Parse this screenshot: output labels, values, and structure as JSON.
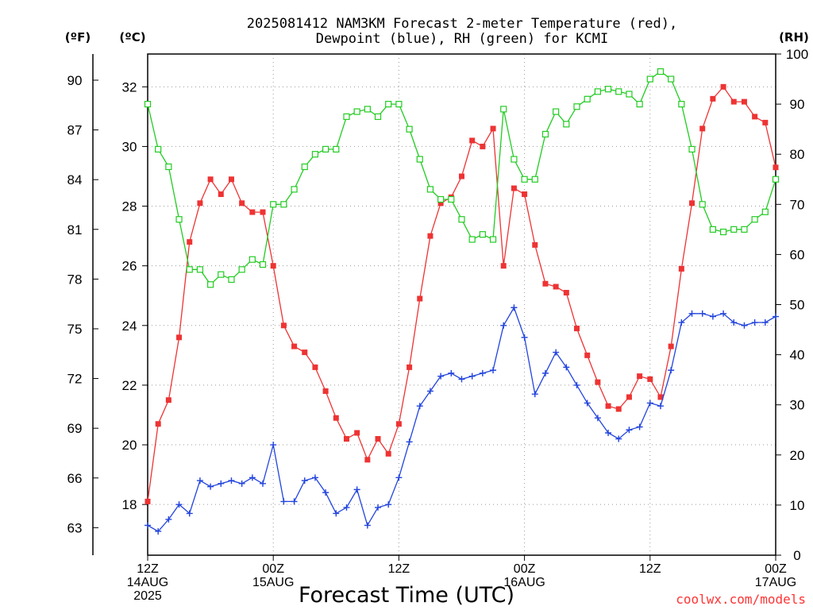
{
  "chart_data": {
    "type": "line",
    "title_line1": "2025081412 NAM3KM Forecast 2-meter Temperature (red),",
    "title_line2": "Dewpoint (blue), RH (green) for KCMI",
    "unit_f": "(ºF)",
    "unit_c": "(ºC)",
    "unit_rh": "(RH)",
    "xlabel": "Forecast Time (UTC)",
    "credit": "coolwx.com/models",
    "x_start_hour": 0,
    "x_end_hour": 60,
    "x_ticks": [
      {
        "hour": 0,
        "lines": [
          "12Z",
          "14AUG",
          "2025"
        ]
      },
      {
        "hour": 12,
        "lines": [
          "00Z",
          "15AUG"
        ]
      },
      {
        "hour": 24,
        "lines": [
          "12Z"
        ]
      },
      {
        "hour": 36,
        "lines": [
          "00Z",
          "16AUG"
        ]
      },
      {
        "hour": 48,
        "lines": [
          "12Z"
        ]
      },
      {
        "hour": 60,
        "lines": [
          "00Z",
          "17AUG"
        ]
      }
    ],
    "ylim_c": [
      16.3,
      33.1
    ],
    "yticks_c": [
      "18",
      "20",
      "22",
      "24",
      "26",
      "28",
      "30",
      "32"
    ],
    "yticks_f": [
      "63",
      "66",
      "69",
      "72",
      "75",
      "78",
      "81",
      "84",
      "87",
      "90"
    ],
    "ylim_rh": [
      0,
      100
    ],
    "yticks_rh": [
      "0",
      "10",
      "20",
      "30",
      "40",
      "50",
      "60",
      "70",
      "80",
      "90",
      "100"
    ],
    "grid": true,
    "series": [
      {
        "name": "Temperature",
        "units": "C",
        "color": "#ee3333",
        "marker": "filled-square",
        "values": [
          18.1,
          20.7,
          21.5,
          23.6,
          26.8,
          28.1,
          28.9,
          28.4,
          28.9,
          28.1,
          27.8,
          27.8,
          26.0,
          24.0,
          23.3,
          23.1,
          22.6,
          21.8,
          20.9,
          20.2,
          20.4,
          19.5,
          20.2,
          19.7,
          20.7,
          22.6,
          24.9,
          27.0,
          28.1,
          28.3,
          29.0,
          30.2,
          30.0,
          30.6,
          26.0,
          28.6,
          28.4,
          26.7,
          25.4,
          25.3,
          25.1,
          23.9,
          23.0,
          22.1,
          21.3,
          21.2,
          21.6,
          22.3,
          22.2,
          21.6,
          23.3,
          25.9,
          28.1,
          30.6,
          31.6,
          32.0,
          31.5,
          31.5,
          31.0,
          30.8,
          29.3
        ]
      },
      {
        "name": "Dewpoint",
        "units": "C",
        "color": "#2244dd",
        "marker": "plus",
        "values": [
          17.3,
          17.1,
          17.5,
          18.0,
          17.7,
          18.8,
          18.6,
          18.7,
          18.8,
          18.7,
          18.9,
          18.7,
          20.0,
          18.1,
          18.1,
          18.8,
          18.9,
          18.4,
          17.7,
          17.9,
          18.5,
          17.3,
          17.9,
          18.0,
          18.9,
          20.1,
          21.3,
          21.8,
          22.3,
          22.4,
          22.2,
          22.3,
          22.4,
          22.5,
          24.0,
          24.6,
          23.6,
          21.7,
          22.4,
          23.1,
          22.6,
          22.0,
          21.4,
          20.9,
          20.4,
          20.2,
          20.5,
          20.6,
          21.4,
          21.3,
          22.5,
          24.1,
          24.4,
          24.4,
          24.3,
          24.4,
          24.1,
          24.0,
          24.1,
          24.1,
          24.3
        ]
      },
      {
        "name": "RH",
        "units": "%",
        "color": "#22cc22",
        "marker": "open-square",
        "values": [
          90,
          81,
          77.5,
          67,
          57,
          57,
          54,
          56,
          55,
          57,
          59,
          58,
          70,
          70,
          73,
          77.5,
          80,
          81,
          81,
          87.5,
          88.5,
          89,
          87.5,
          90,
          90,
          85,
          79,
          73,
          71,
          71,
          67,
          63,
          64,
          63,
          89,
          79,
          75,
          75,
          84,
          88.5,
          86,
          89.5,
          91,
          92.5,
          93,
          92.5,
          92,
          90,
          95,
          96.5,
          95,
          90,
          81,
          70,
          65,
          64.5,
          65,
          65,
          67,
          68.5,
          75
        ]
      }
    ]
  }
}
